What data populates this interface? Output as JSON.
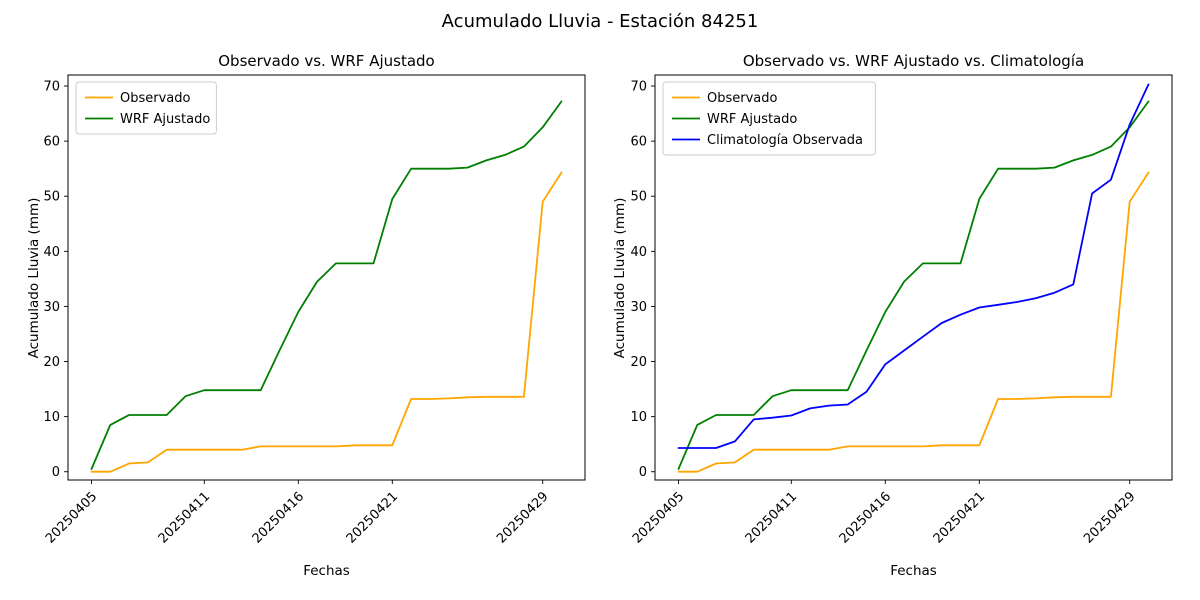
{
  "figure": {
    "title": "Acumulado Lluvia - Estación 84251",
    "background": "#ffffff"
  },
  "axes": {
    "ylim": [
      -1.5,
      72
    ],
    "yticks": [
      0,
      10,
      20,
      30,
      40,
      50,
      60,
      70
    ],
    "xtick_labels": [
      "20250405",
      "20250411",
      "20250416",
      "20250421",
      "20250429"
    ],
    "xtick_indices": [
      0,
      6,
      11,
      16,
      24
    ],
    "tick_label_rotation_deg": 45,
    "spine_color": "#000000",
    "grid": false
  },
  "chart_data": [
    {
      "type": "line",
      "title": "Observado vs. WRF Ajustado",
      "xlabel": "Fechas",
      "ylabel": "Acumulado Lluvia (mm)",
      "legend_position": "upper left",
      "x_dates": [
        "20250405",
        "20250406",
        "20250407",
        "20250408",
        "20250409",
        "20250410",
        "20250411",
        "20250412",
        "20250413",
        "20250414",
        "20250415",
        "20250416",
        "20250417",
        "20250418",
        "20250419",
        "20250420",
        "20250421",
        "20250422",
        "20250423",
        "20250424",
        "20250425",
        "20250426",
        "20250427",
        "20250428",
        "20250429",
        "20250430"
      ],
      "series": [
        {
          "name": "Observado",
          "color": "#ffa500",
          "values": [
            0.0,
            0.0,
            1.5,
            1.7,
            4.0,
            4.0,
            4.0,
            4.0,
            4.0,
            4.6,
            4.6,
            4.6,
            4.6,
            4.6,
            4.8,
            4.8,
            4.8,
            13.2,
            13.2,
            13.3,
            13.5,
            13.6,
            13.6,
            13.6,
            49.0,
            54.3
          ]
        },
        {
          "name": "WRF Ajustado",
          "color": "#008000",
          "values": [
            0.5,
            8.5,
            10.3,
            10.3,
            10.3,
            13.7,
            14.8,
            14.8,
            14.8,
            14.8,
            22.0,
            29.0,
            34.5,
            37.8,
            37.8,
            37.8,
            49.5,
            55.0,
            55.0,
            55.0,
            55.2,
            56.5,
            57.5,
            59.0,
            62.5,
            67.2
          ]
        }
      ]
    },
    {
      "type": "line",
      "title": "Observado vs. WRF Ajustado vs. Climatología",
      "xlabel": "Fechas",
      "ylabel": "Acumulado Lluvia (mm)",
      "legend_position": "upper left",
      "x_dates": [
        "20250405",
        "20250406",
        "20250407",
        "20250408",
        "20250409",
        "20250410",
        "20250411",
        "20250412",
        "20250413",
        "20250414",
        "20250415",
        "20250416",
        "20250417",
        "20250418",
        "20250419",
        "20250420",
        "20250421",
        "20250422",
        "20250423",
        "20250424",
        "20250425",
        "20250426",
        "20250427",
        "20250428",
        "20250429",
        "20250430"
      ],
      "series": [
        {
          "name": "Observado",
          "color": "#ffa500",
          "values": [
            0.0,
            0.0,
            1.5,
            1.7,
            4.0,
            4.0,
            4.0,
            4.0,
            4.0,
            4.6,
            4.6,
            4.6,
            4.6,
            4.6,
            4.8,
            4.8,
            4.8,
            13.2,
            13.2,
            13.3,
            13.5,
            13.6,
            13.6,
            13.6,
            49.0,
            54.3
          ]
        },
        {
          "name": "WRF Ajustado",
          "color": "#008000",
          "values": [
            0.5,
            8.5,
            10.3,
            10.3,
            10.3,
            13.7,
            14.8,
            14.8,
            14.8,
            14.8,
            22.0,
            29.0,
            34.5,
            37.8,
            37.8,
            37.8,
            49.5,
            55.0,
            55.0,
            55.0,
            55.2,
            56.5,
            57.5,
            59.0,
            62.5,
            67.2
          ]
        },
        {
          "name": "Climatología Observada",
          "color": "#0000ff",
          "values": [
            4.3,
            4.3,
            4.3,
            5.5,
            9.5,
            9.8,
            10.2,
            11.5,
            12.0,
            12.2,
            14.5,
            19.5,
            22.0,
            24.5,
            27.0,
            28.5,
            29.8,
            30.3,
            30.8,
            31.5,
            32.5,
            34.0,
            50.5,
            53.0,
            63.0,
            70.3
          ]
        }
      ]
    }
  ]
}
